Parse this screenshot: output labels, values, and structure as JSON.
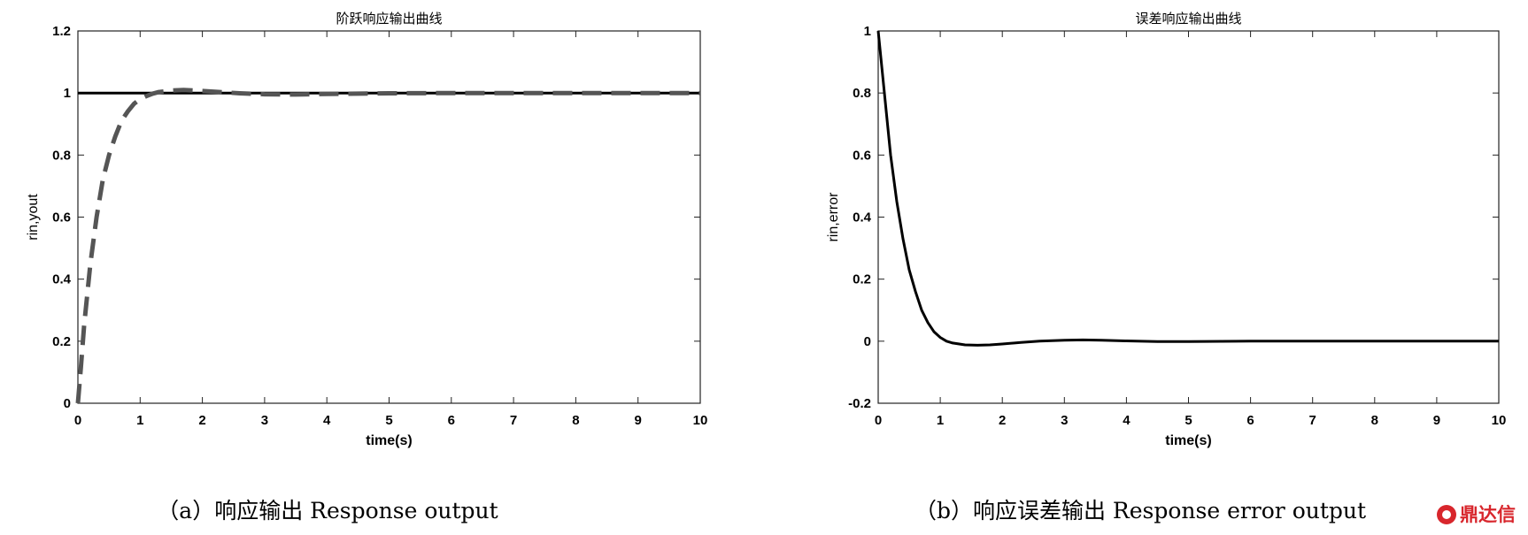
{
  "chart_data": [
    {
      "type": "line",
      "title": "阶跃响应输出曲线",
      "xlabel": "time(s)",
      "ylabel": "rin,yout",
      "xlim": [
        0,
        10
      ],
      "ylim": [
        0,
        1.2
      ],
      "xticks": [
        "0",
        "1",
        "2",
        "3",
        "4",
        "5",
        "6",
        "7",
        "8",
        "9",
        "10"
      ],
      "yticks": [
        "0",
        "0.2",
        "0.4",
        "0.6",
        "0.8",
        "1",
        "1.2"
      ],
      "grid": false,
      "caption": "（a）响应输出  Response output",
      "series": [
        {
          "style": "solid",
          "color": "#000000",
          "x": [
            0,
            10
          ],
          "y": [
            1,
            1
          ]
        },
        {
          "style": "dashed",
          "color": "#555555",
          "x": [
            0,
            0.05,
            0.1,
            0.2,
            0.3,
            0.4,
            0.5,
            0.6,
            0.7,
            0.8,
            0.9,
            1.0,
            1.1,
            1.2,
            1.3,
            1.5,
            1.7,
            1.9,
            2.2,
            2.6,
            3.0,
            3.5,
            4.0,
            5.0,
            6.0,
            8.0,
            10.0
          ],
          "y": [
            0,
            0.12,
            0.25,
            0.45,
            0.6,
            0.72,
            0.8,
            0.86,
            0.91,
            0.94,
            0.965,
            0.98,
            0.99,
            0.998,
            1.003,
            1.008,
            1.01,
            1.008,
            1.004,
            0.999,
            0.996,
            0.995,
            0.997,
            0.999,
            1.0,
            1.0,
            1.0
          ]
        }
      ]
    },
    {
      "type": "line",
      "title": "误差响应输出曲线",
      "xlabel": "time(s)",
      "ylabel": "rin,error",
      "xlim": [
        0,
        10
      ],
      "ylim": [
        -0.2,
        1
      ],
      "xticks": [
        "0",
        "1",
        "2",
        "3",
        "4",
        "5",
        "6",
        "7",
        "8",
        "9",
        "10"
      ],
      "yticks": [
        "-0.2",
        "0",
        "0.2",
        "0.4",
        "0.6",
        "0.8",
        "1"
      ],
      "grid": false,
      "caption": "（b）响应误差输出  Response error output",
      "series": [
        {
          "style": "solid",
          "color": "#000000",
          "x": [
            0,
            0.05,
            0.1,
            0.2,
            0.3,
            0.4,
            0.5,
            0.6,
            0.7,
            0.8,
            0.9,
            1.0,
            1.1,
            1.2,
            1.4,
            1.6,
            1.8,
            2.0,
            2.3,
            2.6,
            3.0,
            3.3,
            3.6,
            4.0,
            4.5,
            5.0,
            6.0,
            7.0,
            8.0,
            10.0
          ],
          "y": [
            1,
            0.9,
            0.8,
            0.6,
            0.45,
            0.33,
            0.23,
            0.16,
            0.1,
            0.06,
            0.03,
            0.012,
            0.0,
            -0.006,
            -0.012,
            -0.013,
            -0.012,
            -0.009,
            -0.004,
            0.0,
            0.003,
            0.004,
            0.003,
            0.001,
            -0.001,
            -0.001,
            0.0,
            0.0,
            0.0,
            0.0
          ]
        }
      ]
    }
  ],
  "watermark": {
    "text": "鼎达信",
    "logo_color": "#d8262c"
  }
}
